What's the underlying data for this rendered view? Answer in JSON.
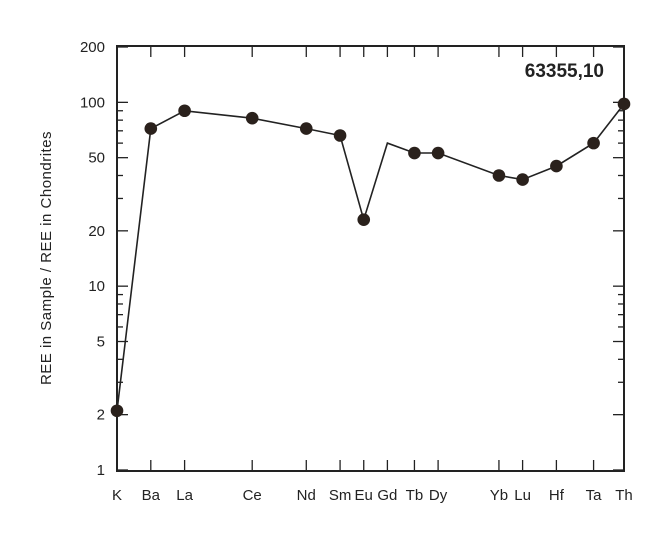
{
  "chart_data": {
    "type": "line",
    "title": "63355,10",
    "ylabel": "REE in Sample / REE in Chondrites",
    "xlabel": "",
    "yscale": "log",
    "ylim": [
      1,
      200
    ],
    "yticks": [
      1,
      2,
      5,
      10,
      20,
      50,
      100,
      200
    ],
    "ytick_labels": [
      "1",
      "2",
      "5",
      "10",
      "20",
      "50",
      "100",
      "200"
    ],
    "categories": [
      "K",
      "Ba",
      "La",
      "Ce",
      "Nd",
      "Sm",
      "Eu",
      "Gd",
      "Tb",
      "Dy",
      "Yb",
      "Lu",
      "Hf",
      "Ta",
      "Th"
    ],
    "x_positions": [
      0,
      1,
      2,
      4,
      5.6,
      6.6,
      7.3,
      8.0,
      8.8,
      9.5,
      11.3,
      12.0,
      13.0,
      14.1,
      15.0
    ],
    "series": [
      {
        "values": [
          2.1,
          72,
          90,
          82,
          72,
          66,
          23,
          60,
          53,
          53,
          40,
          38,
          45,
          60,
          98
        ],
        "markers": [
          true,
          true,
          true,
          true,
          true,
          true,
          true,
          false,
          true,
          true,
          true,
          true,
          true,
          true,
          true
        ]
      }
    ],
    "grid": false,
    "legend": "none"
  },
  "colors": {
    "line": "#222222",
    "marker": "#2a211c",
    "axis": "#222222"
  }
}
